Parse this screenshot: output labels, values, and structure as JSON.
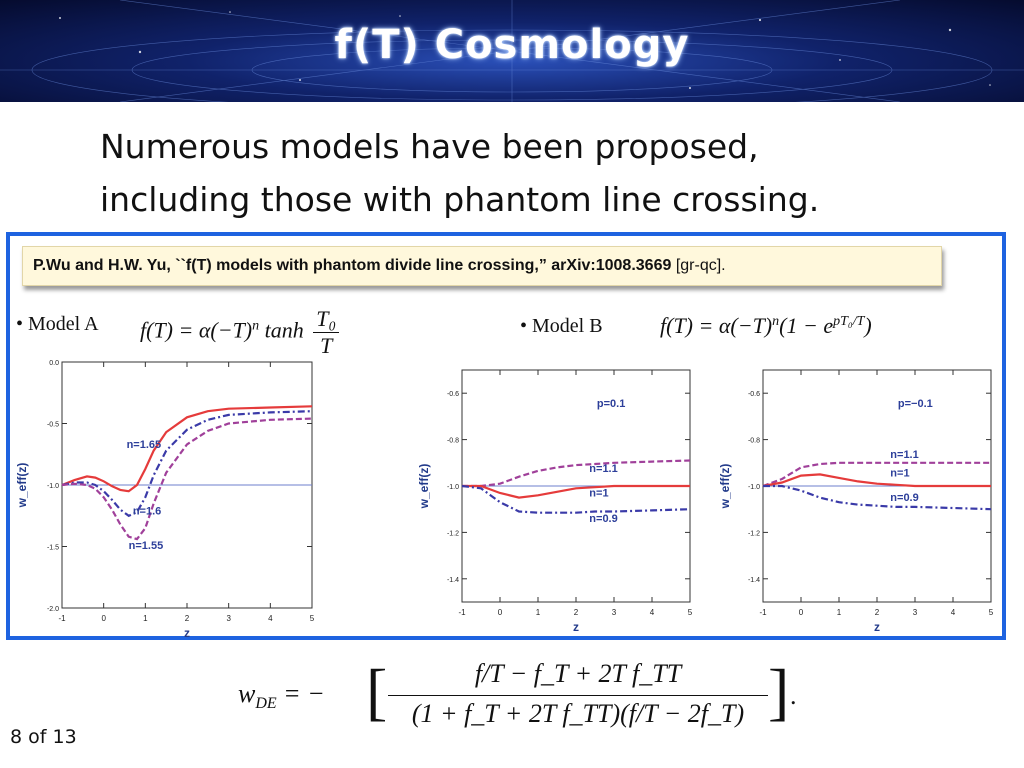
{
  "slide": {
    "title": "f(T) Cosmology",
    "intro_lines": [
      "Numerous models have been proposed,",
      "including those with phantom line crossing."
    ],
    "reference_main": "P.Wu and H.W. Yu, ``f(T) models with phantom divide line crossing,” arXiv:1008.3669",
    "reference_tail": " [gr-qc].",
    "model_a": {
      "label": "• Model A",
      "formula_lhs": "f(T) = α(−T)",
      "formula_exp": "n",
      "formula_mid": " tanh",
      "frac_num": "T₀",
      "frac_den": "T"
    },
    "model_b": {
      "label": "• Model B",
      "formula_lhs": "f(T) = α(−T)",
      "formula_exp": "n",
      "formula_mid": "(1 − e",
      "formula_exp2": "pT₀/T",
      "formula_end": ")"
    },
    "w_de": {
      "lhs": "w",
      "lhs_sub": "DE",
      "eq": " = −",
      "numerator": "f/T − f_T + 2T f_TT",
      "denominator": "(1 + f_T + 2T f_TT)(f/T − 2f_T)",
      "period": "."
    },
    "page_number": "8 of 13"
  },
  "colors": {
    "banner": "#10226a",
    "frame": "#1e63e0",
    "red": "#e53b3b",
    "blue": "#3a3aa8",
    "purple": "#a0409a",
    "reference": "#6e7fcc"
  },
  "chart_data": [
    {
      "type": "line",
      "panel": "Model A",
      "xlabel": "z",
      "ylabel": "w_eff(z)",
      "xlim": [
        -1,
        5
      ],
      "ylim": [
        -2.0,
        0.0
      ],
      "x_ticks": [
        -1,
        0,
        1,
        2,
        3,
        4,
        5
      ],
      "y_ticks": [
        0.0,
        -0.5,
        -1.0,
        -1.5,
        -2.0
      ],
      "y_tick_labels": [
        "0.0",
        "-0.5",
        "-1.0",
        "-1.5",
        "-2.0"
      ],
      "reference_line": -1.0,
      "series": [
        {
          "label": "n=1.65",
          "style": "solid",
          "color": "red",
          "x": [
            -1,
            -0.7,
            -0.4,
            -0.2,
            0,
            0.2,
            0.4,
            0.6,
            0.8,
            1.0,
            1.2,
            1.5,
            2.0,
            2.5,
            3.0,
            4.0,
            5.0
          ],
          "y": [
            -1.0,
            -0.96,
            -0.93,
            -0.94,
            -0.97,
            -1.01,
            -1.04,
            -1.05,
            -1.0,
            -0.87,
            -0.72,
            -0.57,
            -0.45,
            -0.4,
            -0.38,
            -0.37,
            -0.36
          ]
        },
        {
          "label": "n=1.6",
          "style": "dashdot",
          "color": "blue",
          "x": [
            -1,
            -0.7,
            -0.4,
            -0.2,
            0,
            0.2,
            0.4,
            0.6,
            0.8,
            1.0,
            1.2,
            1.5,
            2.0,
            2.5,
            3.0,
            4.0,
            5.0
          ],
          "y": [
            -1.0,
            -0.98,
            -0.98,
            -1.0,
            -1.05,
            -1.12,
            -1.2,
            -1.25,
            -1.22,
            -1.1,
            -0.92,
            -0.72,
            -0.55,
            -0.47,
            -0.43,
            -0.41,
            -0.4
          ]
        },
        {
          "label": "n=1.55",
          "style": "dashed",
          "color": "purple",
          "x": [
            -1,
            -0.7,
            -0.4,
            -0.2,
            0,
            0.2,
            0.4,
            0.6,
            0.8,
            1.0,
            1.2,
            1.5,
            2.0,
            2.5,
            3.0,
            4.0,
            5.0
          ],
          "y": [
            -1.0,
            -0.99,
            -1.0,
            -1.03,
            -1.1,
            -1.2,
            -1.32,
            -1.42,
            -1.44,
            -1.35,
            -1.15,
            -0.9,
            -0.67,
            -0.56,
            -0.5,
            -0.47,
            -0.46
          ]
        }
      ],
      "annotations": [
        {
          "text": "n=1.65",
          "x": 0.55,
          "y": -0.7
        },
        {
          "text": "n=1.6",
          "x": 0.7,
          "y": -1.24
        },
        {
          "text": "n=1.55",
          "x": 0.6,
          "y": -1.52
        }
      ]
    },
    {
      "type": "line",
      "panel": "Model B, p=0.1",
      "xlabel": "z",
      "ylabel": "w_eff(z)",
      "xlim": [
        -1,
        5
      ],
      "ylim": [
        -1.5,
        -0.5
      ],
      "x_ticks": [
        -1,
        0,
        1,
        2,
        3,
        4,
        5
      ],
      "y_ticks": [
        -0.6,
        -0.8,
        -1.0,
        -1.2,
        -1.4
      ],
      "y_tick_labels": [
        "-0.6",
        "-0.8",
        "-1.0",
        "-1.2",
        "-1.4"
      ],
      "reference_line": -1.0,
      "legend_text": "p=0.1",
      "series": [
        {
          "label": "n=1.1",
          "style": "dashed",
          "color": "purple",
          "x": [
            -1,
            -0.5,
            0,
            0.5,
            1,
            1.5,
            2,
            2.5,
            3,
            4,
            5
          ],
          "y": [
            -1.0,
            -1.0,
            -0.99,
            -0.96,
            -0.935,
            -0.92,
            -0.91,
            -0.905,
            -0.9,
            -0.895,
            -0.89
          ]
        },
        {
          "label": "n=1",
          "style": "solid",
          "color": "red",
          "x": [
            -1,
            -0.5,
            0,
            0.5,
            1,
            1.5,
            2,
            2.5,
            3,
            4,
            5
          ],
          "y": [
            -1.0,
            -1.0,
            -1.03,
            -1.05,
            -1.04,
            -1.025,
            -1.01,
            -1.005,
            -1.0,
            -1.0,
            -1.0
          ]
        },
        {
          "label": "n=0.9",
          "style": "dashdot",
          "color": "blue",
          "x": [
            -1,
            -0.5,
            0,
            0.5,
            1,
            1.5,
            2,
            2.5,
            3,
            4,
            5
          ],
          "y": [
            -1.0,
            -1.01,
            -1.07,
            -1.11,
            -1.115,
            -1.115,
            -1.115,
            -1.11,
            -1.11,
            -1.105,
            -1.1
          ]
        }
      ],
      "annotations": [
        {
          "text": "p=0.1",
          "x": 2.55,
          "y": -0.66
        },
        {
          "text": "n=1.1",
          "x": 2.35,
          "y": -0.94
        },
        {
          "text": "n=1",
          "x": 2.35,
          "y": -1.045
        },
        {
          "text": "n=0.9",
          "x": 2.35,
          "y": -1.155
        }
      ]
    },
    {
      "type": "line",
      "panel": "Model B, p=-0.1",
      "xlabel": "z",
      "ylabel": "w_eff(z)",
      "xlim": [
        -1,
        5
      ],
      "ylim": [
        -1.5,
        -0.5
      ],
      "x_ticks": [
        -1,
        0,
        1,
        2,
        3,
        4,
        5
      ],
      "y_ticks": [
        -0.6,
        -0.8,
        -1.0,
        -1.2,
        -1.4
      ],
      "y_tick_labels": [
        "-0.6",
        "-0.8",
        "-1.0",
        "-1.2",
        "-1.4"
      ],
      "reference_line": -1.0,
      "legend_text": "p=−0.1",
      "series": [
        {
          "label": "n=1.1",
          "style": "dashed",
          "color": "purple",
          "x": [
            -1,
            -0.5,
            0,
            0.5,
            1,
            1.5,
            2,
            2.5,
            3,
            4,
            5
          ],
          "y": [
            -1.0,
            -0.97,
            -0.92,
            -0.905,
            -0.9,
            -0.9,
            -0.9,
            -0.9,
            -0.9,
            -0.9,
            -0.9
          ]
        },
        {
          "label": "n=1",
          "style": "solid",
          "color": "red",
          "x": [
            -1,
            -0.5,
            0,
            0.5,
            1,
            1.5,
            2,
            2.5,
            3,
            4,
            5
          ],
          "y": [
            -1.0,
            -0.985,
            -0.955,
            -0.95,
            -0.965,
            -0.98,
            -0.99,
            -0.995,
            -1.0,
            -1.0,
            -1.0
          ]
        },
        {
          "label": "n=0.9",
          "style": "dashdot",
          "color": "blue",
          "x": [
            -1,
            -0.5,
            0,
            0.5,
            1,
            1.5,
            2,
            2.5,
            3,
            4,
            5
          ],
          "y": [
            -1.0,
            -1.0,
            -1.02,
            -1.05,
            -1.07,
            -1.08,
            -1.085,
            -1.09,
            -1.09,
            -1.095,
            -1.1
          ]
        }
      ],
      "annotations": [
        {
          "text": "p=−0.1",
          "x": 2.55,
          "y": -0.66
        },
        {
          "text": "n=1.1",
          "x": 2.35,
          "y": -0.88
        },
        {
          "text": "n=1",
          "x": 2.35,
          "y": -0.96
        },
        {
          "text": "n=0.9",
          "x": 2.35,
          "y": -1.065
        }
      ]
    }
  ]
}
